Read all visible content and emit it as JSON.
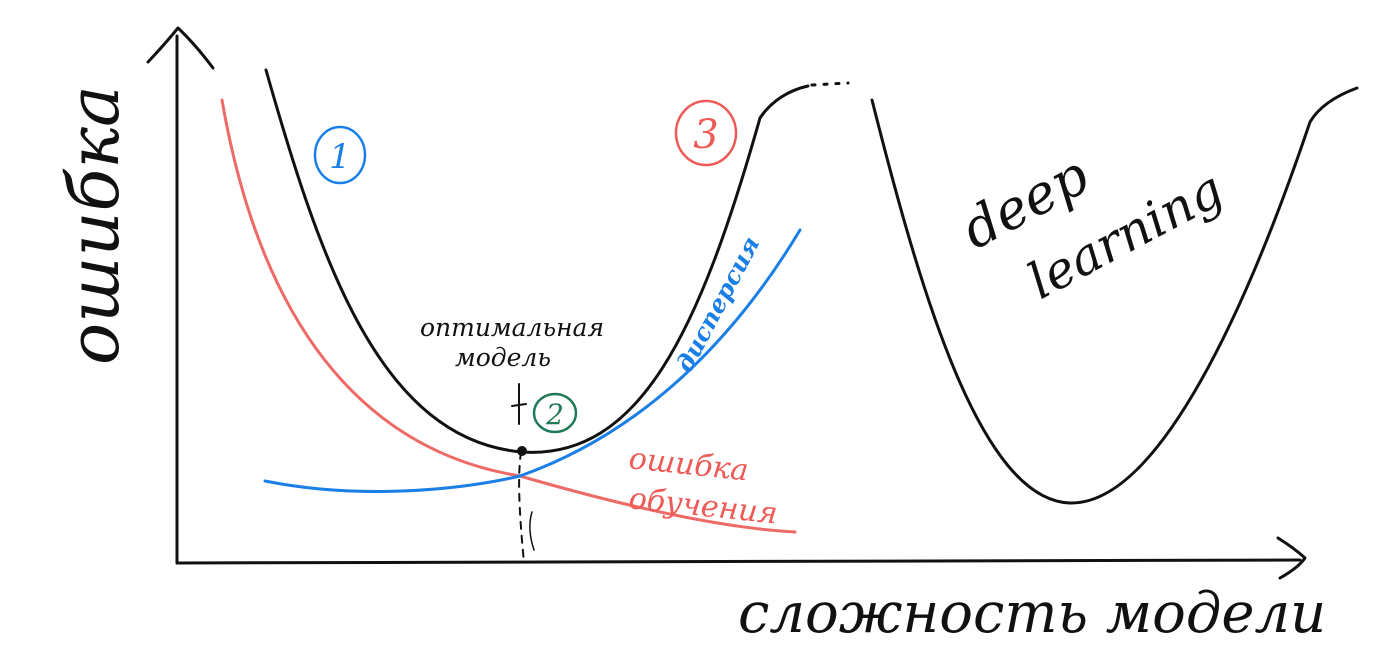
{
  "diagram": {
    "y_axis_label": "ошибка",
    "x_axis_label": "сложность модели",
    "annotations": {
      "optimal_model_line1": "оптимальная",
      "optimal_model_line2": "модель",
      "variance": "дисперсия",
      "training_error_line1": "ошибка",
      "training_error_line2": "обучения",
      "deep_learning_line1": "deep",
      "deep_learning_line2": "learning"
    },
    "markers": {
      "one": "1",
      "two": "2",
      "three": "3"
    }
  },
  "colors": {
    "ink": "#111111",
    "total_error": "#111111",
    "training_error": "#ee6a66",
    "variance": "#1a7fe6",
    "marker_one": "#1a7fe6",
    "marker_two": "#1f7a55",
    "marker_three": "#ee5a55"
  }
}
